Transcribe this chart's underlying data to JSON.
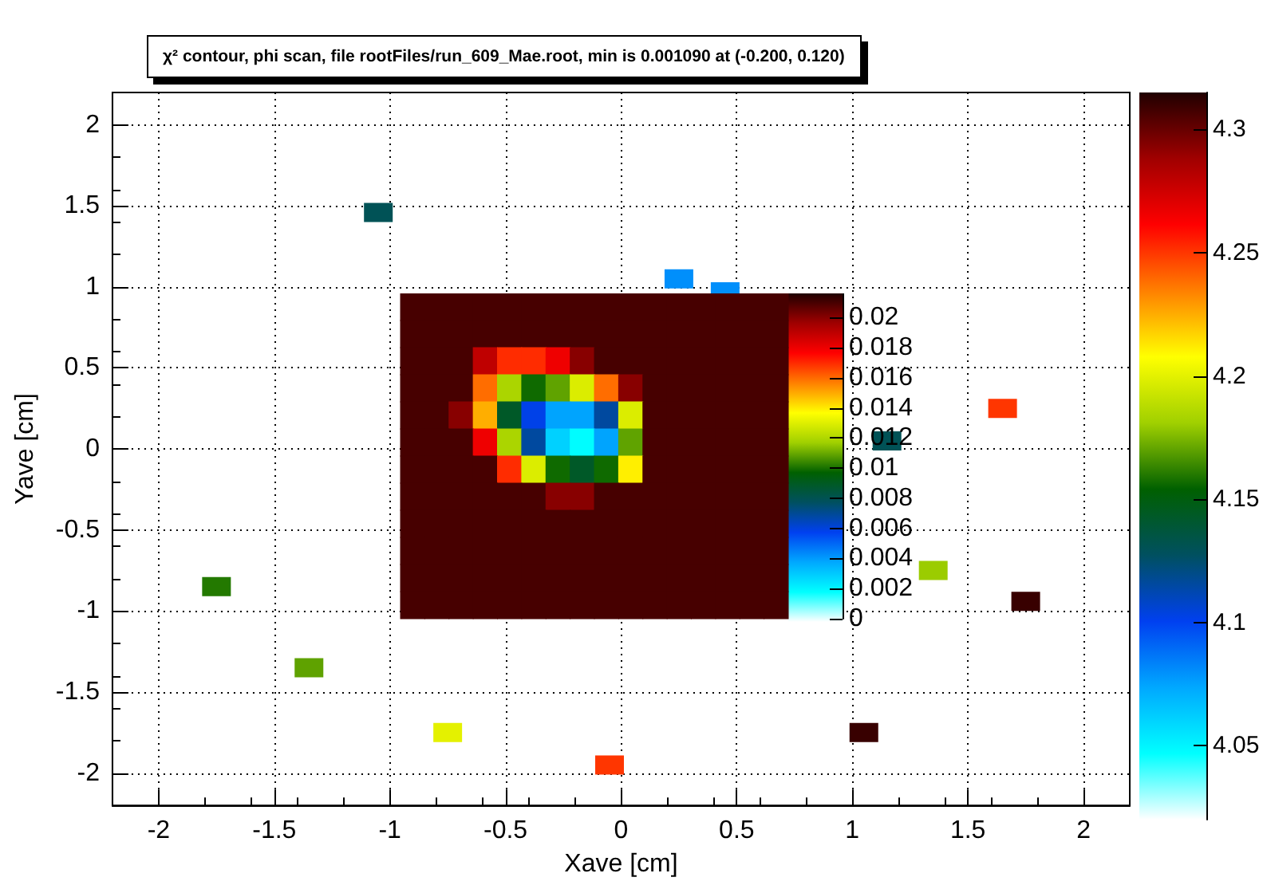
{
  "chart_data": [
    {
      "type": "scatter",
      "title": "χ² contour, phi scan, file rootFiles/run_609_Mae.root, min is 0.001090 at (-0.200, 0.120)",
      "xlabel": "Xave [cm]",
      "ylabel": "Yave [cm]",
      "x": [
        -1.05,
        0.25,
        0.45,
        1.65,
        1.15,
        1.35,
        1.75,
        -1.75,
        -1.35,
        -0.75,
        -0.05,
        1.05
      ],
      "values": [
        1.46,
        1.05,
        0.97,
        0.25,
        0.05,
        -0.75,
        -0.94,
        -0.85,
        -1.35,
        -1.75,
        -1.95,
        -1.75
      ],
      "cvalues": [
        4.13,
        4.08,
        4.08,
        4.25,
        4.13,
        4.18,
        4.31,
        4.16,
        4.17,
        4.2,
        4.25,
        4.31
      ],
      "clim": [
        4.02,
        4.315
      ],
      "cticks": [
        4.05,
        4.1,
        4.15,
        4.2,
        4.25,
        4.3
      ],
      "xlim": [
        -2.2,
        2.2
      ],
      "ylim": [
        -2.2,
        2.2
      ],
      "xticks": [
        -2,
        -1.5,
        -1,
        -0.5,
        0,
        0.5,
        1,
        1.5,
        2
      ],
      "yticks": [
        -2,
        -1.5,
        -1,
        -0.5,
        0,
        0.5,
        1,
        1.5,
        2
      ],
      "grid": true,
      "marker": "square"
    },
    {
      "type": "heatmap",
      "categories": [
        null,
        null,
        null,
        null,
        null,
        null,
        null,
        null,
        null,
        null,
        null,
        null,
        null,
        null,
        null,
        null
      ],
      "y_categories": [
        null,
        null,
        null,
        null,
        null,
        null,
        null,
        null,
        null,
        null,
        null,
        null
      ],
      "cells": [
        [
          0.021,
          0.021,
          0.021,
          0.021,
          0.021,
          0.021,
          0.021,
          0.021,
          0.021,
          0.021,
          0.021,
          0.021,
          0.021,
          0.021,
          0.021,
          0.021
        ],
        [
          0.021,
          0.021,
          0.021,
          0.021,
          0.021,
          0.021,
          0.021,
          0.021,
          0.021,
          0.021,
          0.021,
          0.021,
          0.021,
          0.021,
          0.021,
          0.021
        ],
        [
          0.021,
          0.021,
          0.021,
          0.019,
          0.017,
          0.017,
          0.018,
          0.02,
          0.021,
          0.021,
          0.021,
          0.021,
          0.021,
          0.021,
          0.021,
          0.021
        ],
        [
          0.021,
          0.021,
          0.021,
          0.016,
          0.012,
          0.01,
          0.011,
          0.013,
          0.016,
          0.02,
          0.021,
          0.021,
          0.021,
          0.021,
          0.021,
          0.021
        ],
        [
          0.021,
          0.021,
          0.02,
          0.015,
          0.009,
          0.006,
          0.004,
          0.004,
          0.007,
          0.013,
          0.021,
          0.021,
          0.021,
          0.021,
          0.021,
          0.021
        ],
        [
          0.021,
          0.021,
          0.021,
          0.018,
          0.012,
          0.007,
          0.003,
          0.002,
          0.004,
          0.011,
          0.021,
          0.021,
          0.021,
          0.021,
          0.021,
          0.021
        ],
        [
          0.021,
          0.021,
          0.021,
          0.021,
          0.017,
          0.013,
          0.01,
          0.009,
          0.01,
          0.014,
          0.021,
          0.021,
          0.021,
          0.021,
          0.021,
          0.021
        ],
        [
          0.021,
          0.021,
          0.021,
          0.021,
          0.021,
          0.021,
          0.02,
          0.02,
          0.021,
          0.021,
          0.021,
          0.021,
          0.021,
          0.021,
          0.021,
          0.021
        ],
        [
          0.021,
          0.021,
          0.021,
          0.021,
          0.021,
          0.021,
          0.021,
          0.021,
          0.021,
          0.021,
          0.021,
          0.021,
          0.021,
          0.021,
          0.021,
          0.021
        ],
        [
          0.021,
          0.021,
          0.021,
          0.021,
          0.021,
          0.021,
          0.021,
          0.021,
          0.021,
          0.021,
          0.021,
          0.021,
          0.021,
          0.021,
          0.021,
          0.021
        ],
        [
          0.021,
          0.021,
          0.021,
          0.021,
          0.021,
          0.021,
          0.021,
          0.021,
          0.021,
          0.021,
          0.021,
          0.021,
          0.021,
          0.021,
          0.021,
          0.021
        ],
        [
          0.021,
          0.021,
          0.021,
          0.021,
          0.021,
          0.021,
          0.021,
          0.021,
          0.021,
          0.021,
          0.021,
          0.021,
          0.021,
          0.021,
          0.021,
          0.021
        ]
      ],
      "clim": [
        0,
        0.0216
      ],
      "cticks": [
        0,
        0.002,
        0.004,
        0.006,
        0.008,
        0.01,
        0.012,
        0.014,
        0.016,
        0.018,
        0.02
      ]
    }
  ]
}
